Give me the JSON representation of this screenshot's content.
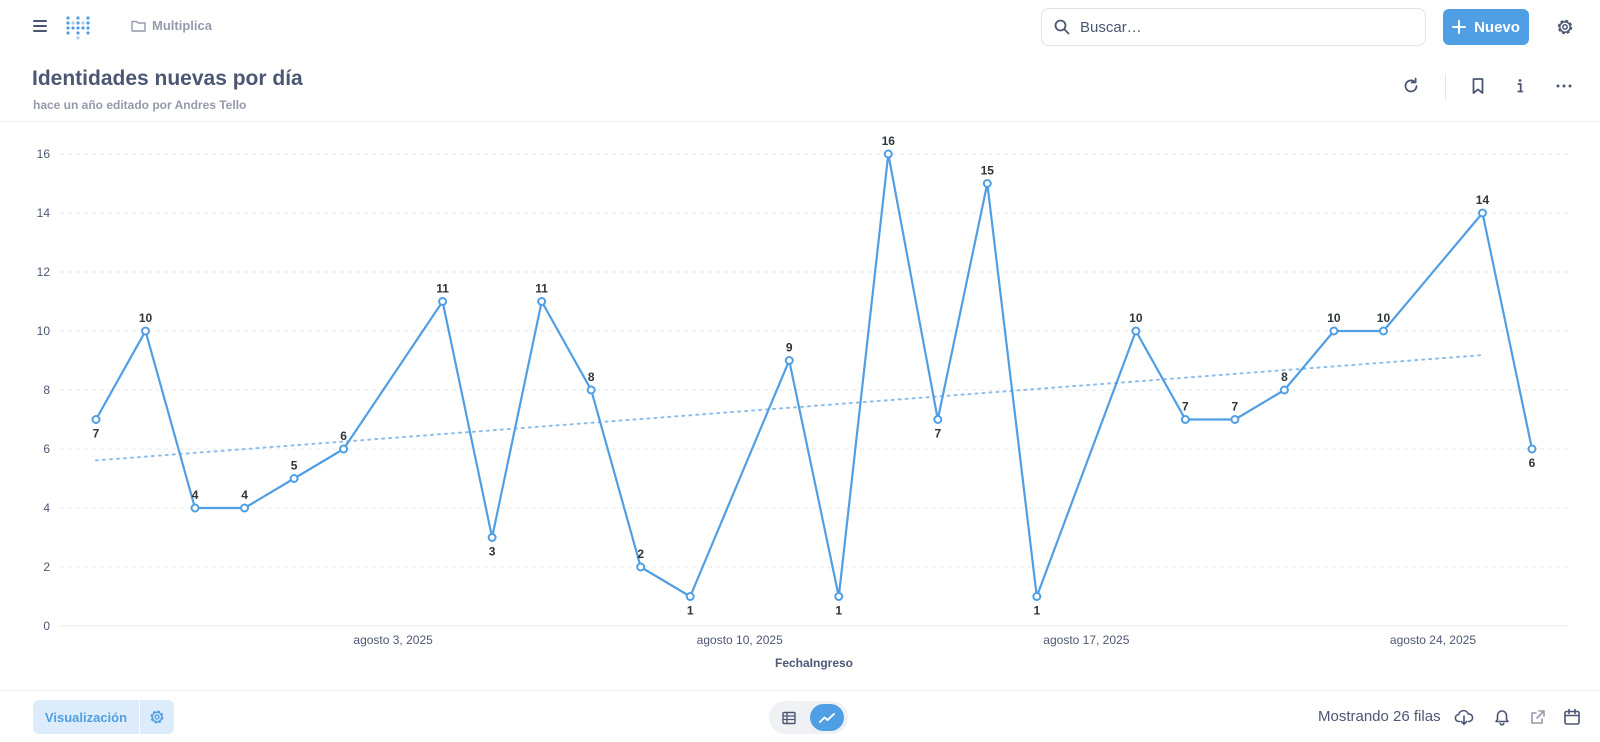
{
  "topbar": {
    "breadcrumb": "Multiplica",
    "search_placeholder": "Buscar…",
    "new_label": "Nuevo"
  },
  "header": {
    "title": "Identidades nuevas por día",
    "subtitle": "hace un año editado por Andres Tello"
  },
  "footer": {
    "viz_label": "Visualización",
    "rows_label": "Mostrando 26 filas"
  },
  "colors": {
    "accent": "#509ee3",
    "text": "#4c5773",
    "muted": "#949aab"
  },
  "chart_data": {
    "type": "line",
    "xlabel": "FechaIngreso",
    "ylabel": "",
    "ylim": [
      0,
      16
    ],
    "yticks": [
      0,
      2,
      4,
      6,
      8,
      10,
      12,
      14,
      16
    ],
    "x": [
      "2025-07-28",
      "2025-07-29",
      "2025-07-30",
      "2025-07-31",
      "2025-08-01",
      "2025-08-02",
      "2025-08-04",
      "2025-08-05",
      "2025-08-06",
      "2025-08-07",
      "2025-08-08",
      "2025-08-09",
      "2025-08-11",
      "2025-08-12",
      "2025-08-13",
      "2025-08-14",
      "2025-08-15",
      "2025-08-16",
      "2025-08-18",
      "2025-08-19",
      "2025-08-20",
      "2025-08-21",
      "2025-08-22",
      "2025-08-23",
      "2025-08-25",
      "2025-08-26"
    ],
    "xtick_labels": [
      {
        "date": "2025-08-03",
        "label": "agosto 3, 2025"
      },
      {
        "date": "2025-08-10",
        "label": "agosto 10, 2025"
      },
      {
        "date": "2025-08-17",
        "label": "agosto 17, 2025"
      },
      {
        "date": "2025-08-24",
        "label": "agosto 24, 2025"
      }
    ],
    "series": [
      {
        "values": [
          7,
          10,
          4,
          4,
          5,
          6,
          11,
          3,
          11,
          8,
          2,
          1,
          9,
          1,
          16,
          7,
          15,
          1,
          10,
          7,
          7,
          8,
          10,
          10,
          14,
          6
        ],
        "color": "#509ee3"
      }
    ],
    "trend_line": true,
    "grid": true
  }
}
